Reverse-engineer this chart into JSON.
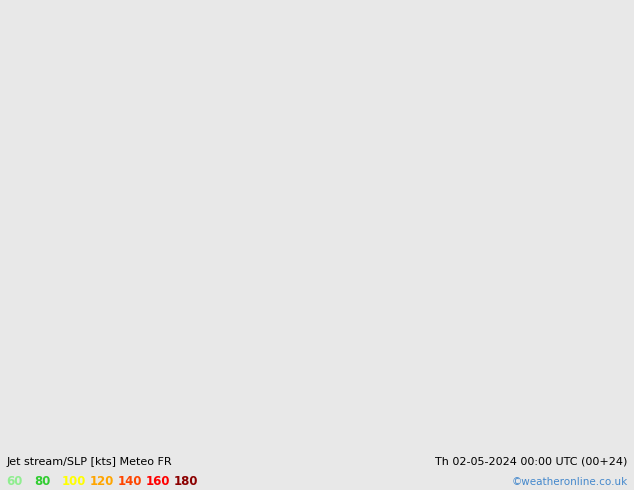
{
  "title_left": "Jet stream/SLP [kts] Meteo FR",
  "title_right": "Th 02-05-2024 00:00 UTC (00+24)",
  "watermark": "©weatheronline.co.uk",
  "legend_values": [
    "60",
    "80",
    "100",
    "120",
    "140",
    "160",
    "180"
  ],
  "legend_colors": [
    "#90ee90",
    "#32cd32",
    "#ffff00",
    "#ffa500",
    "#ff4500",
    "#ff0000",
    "#8b0000"
  ],
  "bg_color": "#e8e8e8",
  "land_color": "#c8dfa0",
  "sea_color": "#dce8f0",
  "bottom_bar_color": "#ffffff",
  "title_color": "#000000",
  "watermark_color": "#4488cc",
  "figwidth": 6.34,
  "figheight": 4.9,
  "dpi": 100,
  "extent": [
    95,
    185,
    -55,
    5
  ],
  "isobar_red_color": "#cc0000",
  "isobar_blue_color": "#0000bb",
  "isobar_black_color": "#000000",
  "jet_green_light": "#90ee90",
  "jet_green_medium": "#50c050",
  "jet_green_teal": "#40b0a0"
}
